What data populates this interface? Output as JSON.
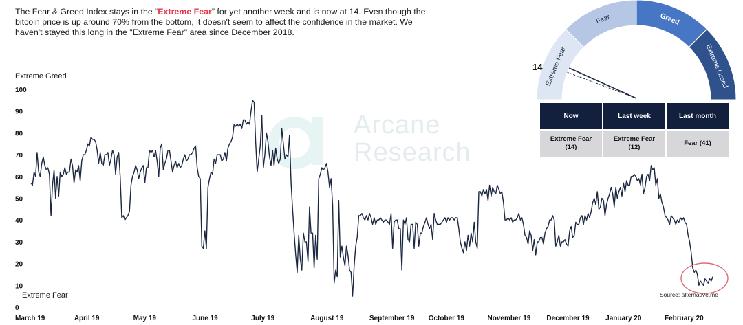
{
  "intro": {
    "part1": "The Fear & Greed Index stays in the “",
    "highlight": "Extreme Fear",
    "part2": "” for yet another week and is now at 14. Even though the bitcoin price is up around 70% from the bottom, it doesn't seem to affect the confidence in the market. We haven't stayed this long in the \"Extreme Fear\" area since December 2018."
  },
  "labels": {
    "top": "Extreme Greed",
    "bottom": "Extreme Fear",
    "source": "Source: alternative.me"
  },
  "watermark": {
    "line1": "Arcane",
    "line2": "Research"
  },
  "gauge": {
    "value": "14",
    "segments": [
      "Extreme Fear",
      "Fear",
      "Greed",
      "Extreme Greed"
    ],
    "colors": [
      "#dfe6f3",
      "#b6c7e6",
      "#4776c4",
      "#2f518c"
    ],
    "now_value": 14,
    "last_week_value": 12
  },
  "table": {
    "headers": [
      "Now",
      "Last week",
      "Last month"
    ],
    "cells": [
      {
        "state": "Extreme Fear",
        "value": "(14)"
      },
      {
        "state": "Extreme Fear",
        "value": "(12)"
      },
      {
        "state": "Fear (41)",
        "value": ""
      }
    ]
  },
  "chart_data": {
    "type": "line",
    "title": "",
    "xlabel": "",
    "ylabel": "",
    "ylim": [
      0,
      100
    ],
    "yticks": [
      0,
      10,
      20,
      30,
      40,
      50,
      60,
      70,
      80,
      90,
      100
    ],
    "x_labels": [
      "March 19",
      "April 19",
      "May 19",
      "June 19",
      "July 19",
      "August 19",
      "September 19",
      "October 19",
      "November 19",
      "December 19",
      "January 20",
      "February 20"
    ],
    "line_color": "#1b2840",
    "highlight_circle_color": "#e06a74",
    "series": [
      {
        "values": [
          57,
          56,
          62,
          60,
          71,
          62,
          60,
          66,
          69,
          65,
          63,
          64,
          61,
          42,
          56,
          63,
          50,
          60,
          51,
          62,
          60,
          61,
          64,
          61,
          62,
          62,
          68,
          65,
          57,
          63,
          62,
          65,
          58,
          67,
          70,
          70,
          72,
          75,
          74,
          78,
          77,
          77,
          76,
          72,
          66,
          71,
          66,
          65,
          70,
          70,
          71,
          65,
          68,
          72,
          70,
          61,
          69,
          71,
          60,
          41,
          42,
          40,
          41,
          42,
          44,
          56,
          60,
          62,
          65,
          63,
          59,
          62,
          64,
          65,
          57,
          64,
          64,
          72,
          71,
          72,
          69,
          72,
          67,
          60,
          73,
          75,
          63,
          66,
          68,
          72,
          72,
          67,
          62,
          65,
          67,
          64,
          66,
          64,
          65,
          68,
          70,
          67,
          68,
          70,
          70,
          71,
          73,
          74,
          64,
          60,
          59,
          28,
          27,
          35,
          27,
          55,
          59,
          62,
          61,
          68,
          66,
          70,
          70,
          70,
          67,
          68,
          71,
          67,
          73,
          75,
          76,
          78,
          84,
          83,
          84,
          83,
          84,
          82,
          86,
          86,
          84,
          85,
          84,
          90,
          95,
          94,
          76,
          62,
          68,
          74,
          88,
          64,
          70,
          80,
          76,
          69,
          65,
          72,
          65,
          73,
          68,
          66,
          68,
          82,
          75,
          68,
          70,
          69,
          79,
          57,
          45,
          34,
          24,
          16,
          33,
          22,
          17,
          34,
          30,
          30,
          21,
          46,
          34,
          34,
          18,
          33,
          22,
          59,
          61,
          64,
          63,
          64,
          66,
          62,
          55,
          59,
          47,
          11,
          17,
          14,
          49,
          23,
          28,
          23,
          19,
          28,
          24,
          17,
          16,
          5,
          19,
          28,
          32,
          42,
          42,
          43,
          41,
          40,
          42,
          40,
          43,
          41,
          38,
          41,
          38,
          40,
          40,
          41,
          40,
          39,
          40,
          40,
          39,
          38,
          43,
          27,
          39,
          40,
          40,
          36,
          36,
          17,
          40,
          38,
          41,
          31,
          30,
          38,
          38,
          27,
          39,
          38,
          28,
          34,
          34,
          37,
          39,
          41,
          38,
          36,
          38,
          31,
          43,
          40,
          38,
          38,
          38,
          39,
          40,
          41,
          39,
          41,
          40,
          41,
          41,
          40,
          41,
          41,
          36,
          30,
          27,
          25,
          30,
          26,
          33,
          28,
          34,
          30,
          39,
          30,
          27,
          53,
          53,
          51,
          54,
          52,
          54,
          49,
          56,
          51,
          55,
          53,
          52,
          56,
          54,
          52,
          53,
          48,
          40,
          40,
          41,
          40,
          41,
          39,
          40,
          40,
          41,
          43,
          40,
          41,
          38,
          33,
          32,
          29,
          35,
          33,
          26,
          31,
          24,
          30,
          30,
          32,
          32,
          29,
          34,
          36,
          37,
          40,
          40,
          42,
          40,
          28,
          30,
          33,
          28,
          30,
          30,
          31,
          29,
          28,
          35,
          37,
          32,
          33,
          39,
          38,
          38,
          41,
          42,
          38,
          42,
          40,
          43,
          41,
          44,
          48,
          50,
          47,
          53,
          45,
          46,
          50,
          49,
          42,
          47,
          50,
          52,
          55,
          52,
          46,
          55,
          50,
          53,
          55,
          51,
          57,
          53,
          58,
          56,
          56,
          60,
          60,
          61,
          60,
          58,
          59,
          56,
          61,
          52,
          55,
          60,
          61,
          58,
          65,
          63,
          64,
          56,
          59,
          50,
          52,
          48,
          46,
          42,
          41,
          40,
          38,
          42,
          41,
          40,
          38,
          40,
          39,
          41,
          40,
          41,
          39,
          38,
          33,
          30,
          25,
          18,
          16,
          17,
          15,
          10,
          12,
          11,
          10,
          13,
          12,
          11,
          13,
          12,
          14
        ]
      }
    ]
  }
}
